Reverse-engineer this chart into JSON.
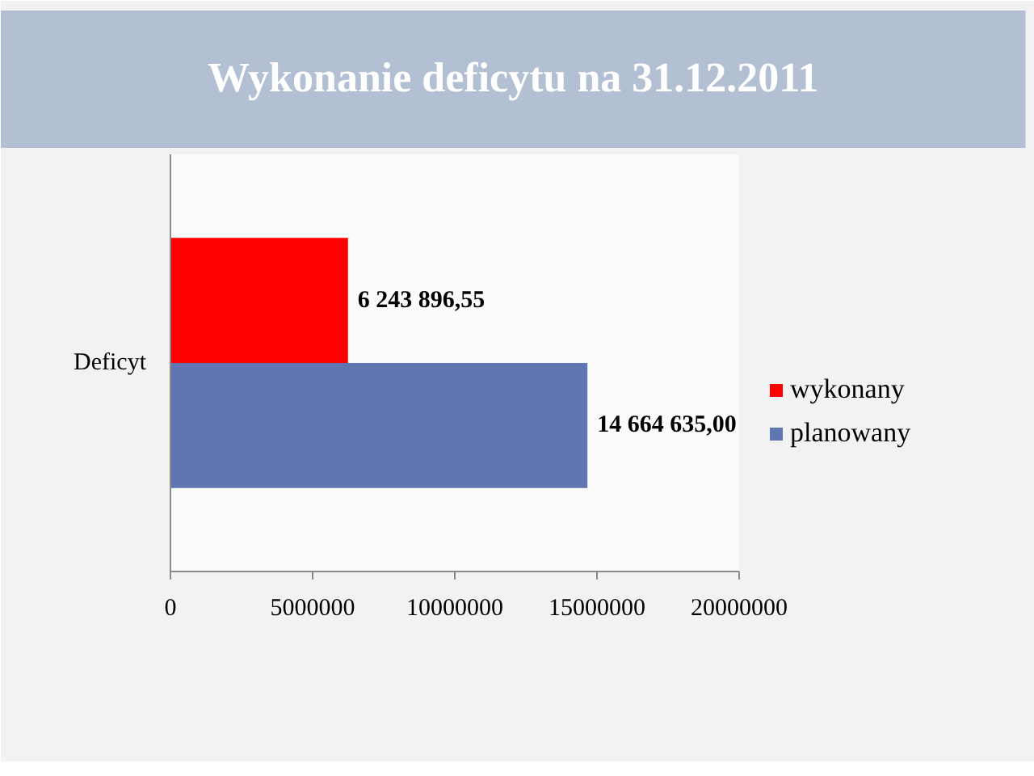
{
  "chart_data": {
    "type": "bar",
    "orientation": "horizontal",
    "title": "Wykonanie deficytu na 31.12.2011",
    "categories": [
      "Deficyt"
    ],
    "series": [
      {
        "name": "wykonany",
        "color": "#ff0000",
        "values": [
          6243896.55
        ],
        "value_labels": [
          "6 243 896,55"
        ]
      },
      {
        "name": "planowany",
        "color": "#6076b2",
        "values": [
          14664635.0
        ],
        "value_labels": [
          "14 664 635,00"
        ]
      }
    ],
    "xlim": [
      0,
      20000000
    ],
    "xticks": [
      0,
      5000000,
      10000000,
      15000000,
      20000000
    ],
    "legend": "right"
  }
}
